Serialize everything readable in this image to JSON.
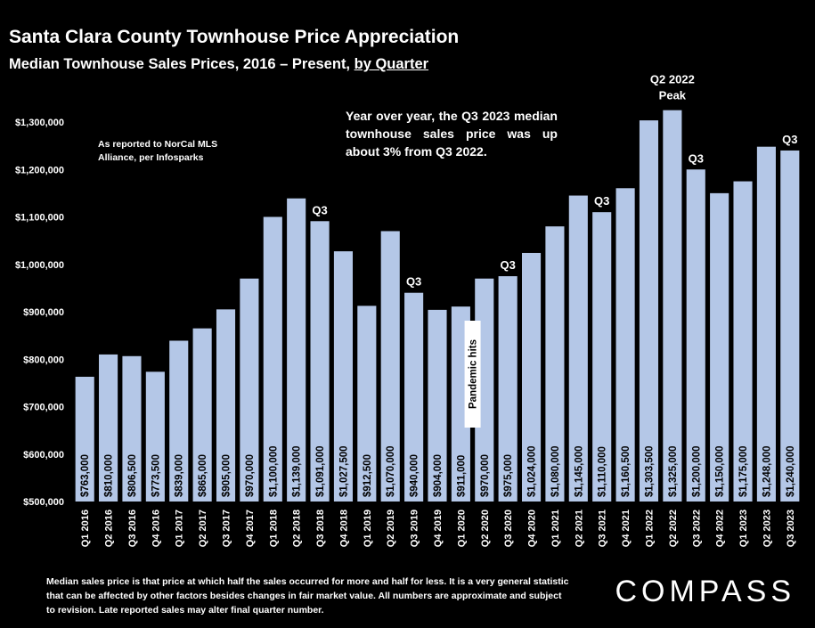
{
  "header": {
    "title": "Santa Clara County Townhouse Price Appreciation",
    "subtitle_main": "Median Townhouse Sales Prices, 2016 – Present, ",
    "subtitle_link": "by Quarter"
  },
  "source_note": "As reported to NorCal MLS Alliance, per Infosparks",
  "callout": "Year over year, the Q3 2023 median townhouse sales price was up about 3% from Q3 2022.",
  "footnote": "Median sales price is that price at which half the sales occurred for more and half for less. It is a very general statistic that can be affected by other factors besides changes in fair market value. All numbers are approximate and subject to revision. Late reported sales may alter final quarter number.",
  "logo": "COMPASS",
  "colors": {
    "bar": "#b4c7e7",
    "background": "#000000",
    "text": "#ffffff"
  },
  "chart_data": {
    "type": "bar",
    "title": "Santa Clara County Townhouse Price Appreciation",
    "ylim": [
      500000,
      1300000
    ],
    "yticks": [
      500000,
      600000,
      700000,
      800000,
      900000,
      1000000,
      1100000,
      1200000,
      1300000
    ],
    "ytick_labels": [
      "$500,000",
      "$600,000",
      "$700,000",
      "$800,000",
      "$900,000",
      "$1,000,000",
      "$1,100,000",
      "$1,200,000",
      "$1,300,000"
    ],
    "grid": false,
    "categories": [
      "Q1 2016",
      "Q2 2016",
      "Q3 2016",
      "Q4 2016",
      "Q1 2017",
      "Q2 2017",
      "Q3 2017",
      "Q4 2017",
      "Q1 2018",
      "Q2 2018",
      "Q3 2018",
      "Q4 2018",
      "Q1 2019",
      "Q2 2019",
      "Q3 2019",
      "Q4 2019",
      "Q1 2020",
      "Q2 2020",
      "Q3 2020",
      "Q4 2020",
      "Q1 2021",
      "Q2 2021",
      "Q3 2021",
      "Q4 2021",
      "Q1 2022",
      "Q2 2022",
      "Q3 2022",
      "Q4 2022",
      "Q1 2023",
      "Q2 2023",
      "Q3 2023"
    ],
    "values": [
      763000,
      810000,
      806500,
      773500,
      839000,
      865000,
      905000,
      970000,
      1100000,
      1139000,
      1091000,
      1027500,
      912500,
      1070000,
      940000,
      904000,
      911000,
      970000,
      975000,
      1024000,
      1080000,
      1145000,
      1110000,
      1160500,
      1303500,
      1325000,
      1200000,
      1150000,
      1175000,
      1248000,
      1240000
    ],
    "value_labels": [
      "$763,000",
      "$810,000",
      "$806,500",
      "$773,500",
      "$839,000",
      "$865,000",
      "$905,000",
      "$970,000",
      "$1,100,000",
      "$1,139,000",
      "$1,091,000",
      "$1,027,500",
      "$912,500",
      "$1,070,000",
      "$940,000",
      "$904,000",
      "$911,000",
      "$970,000",
      "$975,000",
      "$1,024,000",
      "$1,080,000",
      "$1,145,000",
      "$1,110,000",
      "$1,160,500",
      "$1,303,500",
      "$1,325,000",
      "$1,200,000",
      "$1,150,000",
      "$1,175,000",
      "$1,248,000",
      "$1,240,000"
    ],
    "annotations": [
      {
        "index": 10,
        "text": "Q3"
      },
      {
        "index": 14,
        "text": "Q3"
      },
      {
        "index": 18,
        "text": "Q3"
      },
      {
        "index": 22,
        "text": "Q3"
      },
      {
        "index": 26,
        "text": "Q3"
      },
      {
        "index": 30,
        "text": "Q3"
      },
      {
        "index": 25,
        "text": "Q2 2022 Peak"
      }
    ],
    "pandemic_label": {
      "index": 16,
      "text": "Pandemic hits"
    }
  }
}
